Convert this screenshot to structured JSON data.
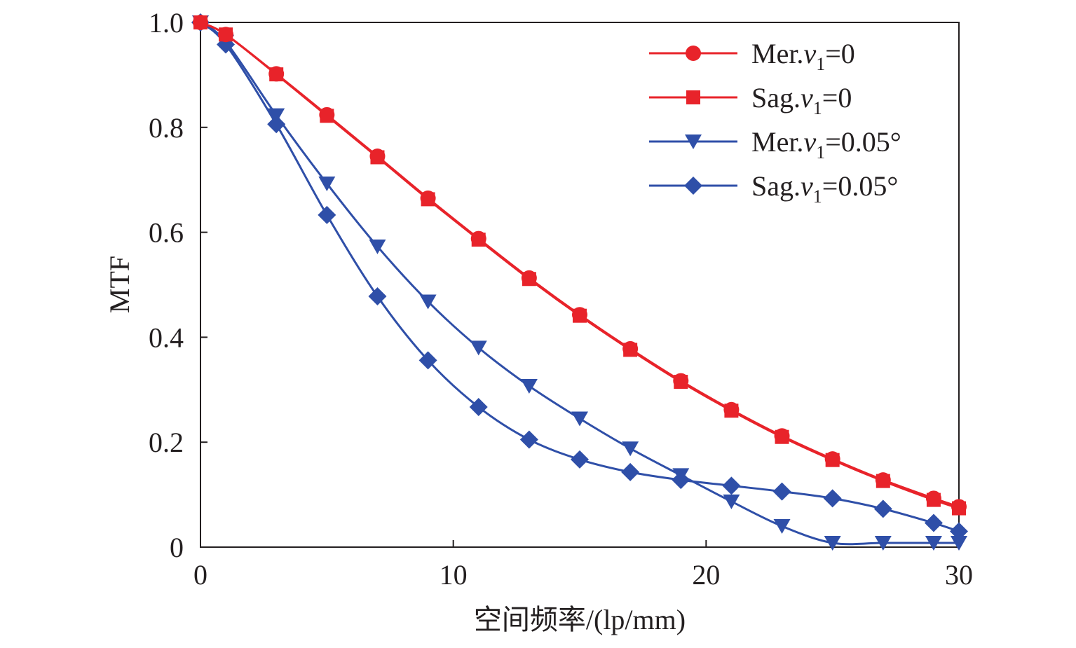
{
  "chart_data": {
    "type": "line",
    "xlabel": "空间频率/(lp/mm)",
    "ylabel": "MTF",
    "xlim": [
      0,
      30
    ],
    "ylim": [
      0,
      1.0
    ],
    "x_ticks": [
      "0",
      "10",
      "20",
      "30"
    ],
    "y_ticks": [
      "0",
      "0.2",
      "0.4",
      "0.6",
      "0.8",
      "1.0"
    ],
    "x_tick_values": [
      0,
      10,
      20,
      30
    ],
    "y_tick_values": [
      0,
      0.2,
      0.4,
      0.6,
      0.8,
      1.0
    ],
    "grid": false,
    "legend_position": "top-right",
    "series": [
      {
        "name": "Mer.v1=0",
        "label_main": "Mer.",
        "label_var": "v",
        "label_sub": "1",
        "label_rest": "=0",
        "color": "#e8232a",
        "marker": "circle",
        "x": [
          0,
          1,
          3,
          5,
          7,
          9,
          11,
          13,
          15,
          17,
          19,
          21,
          23,
          25,
          27,
          29,
          30
        ],
        "y": [
          1.0,
          0.977,
          0.902,
          0.824,
          0.745,
          0.665,
          0.588,
          0.513,
          0.443,
          0.378,
          0.317,
          0.262,
          0.212,
          0.168,
          0.128,
          0.093,
          0.077
        ]
      },
      {
        "name": "Sag.v1=0",
        "label_main": "Sag.",
        "label_var": "v",
        "label_sub": "1",
        "label_rest": "=0",
        "color": "#e8232a",
        "marker": "square",
        "x": [
          0,
          1,
          3,
          5,
          7,
          9,
          11,
          13,
          15,
          17,
          19,
          21,
          23,
          25,
          27,
          29,
          30
        ],
        "y": [
          1.0,
          0.977,
          0.901,
          0.822,
          0.743,
          0.663,
          0.586,
          0.511,
          0.441,
          0.376,
          0.315,
          0.26,
          0.21,
          0.166,
          0.126,
          0.09,
          0.074
        ]
      },
      {
        "name": "Mer.v1=0.05°",
        "label_main": "Mer.",
        "label_var": "v",
        "label_sub": "1",
        "label_rest": "=0.05°",
        "color": "#2f4fa8",
        "marker": "triangle-down",
        "x": [
          0,
          1,
          3,
          5,
          7,
          9,
          11,
          13,
          15,
          17,
          19,
          21,
          23,
          25,
          27,
          29,
          30
        ],
        "y": [
          1.0,
          0.963,
          0.823,
          0.693,
          0.573,
          0.468,
          0.38,
          0.307,
          0.245,
          0.188,
          0.137,
          0.087,
          0.04,
          0.008,
          0.008,
          0.008,
          0.008
        ]
      },
      {
        "name": "Sag.v1=0.05°",
        "label_main": "Sag.",
        "label_var": "v",
        "label_sub": "1",
        "label_rest": "=0.05°",
        "color": "#2f4fa8",
        "marker": "diamond",
        "x": [
          0,
          1,
          3,
          5,
          7,
          9,
          11,
          13,
          15,
          17,
          19,
          21,
          23,
          25,
          27,
          29,
          30
        ],
        "y": [
          1.0,
          0.958,
          0.806,
          0.633,
          0.478,
          0.356,
          0.267,
          0.205,
          0.167,
          0.143,
          0.128,
          0.117,
          0.106,
          0.093,
          0.073,
          0.046,
          0.03
        ]
      }
    ]
  }
}
